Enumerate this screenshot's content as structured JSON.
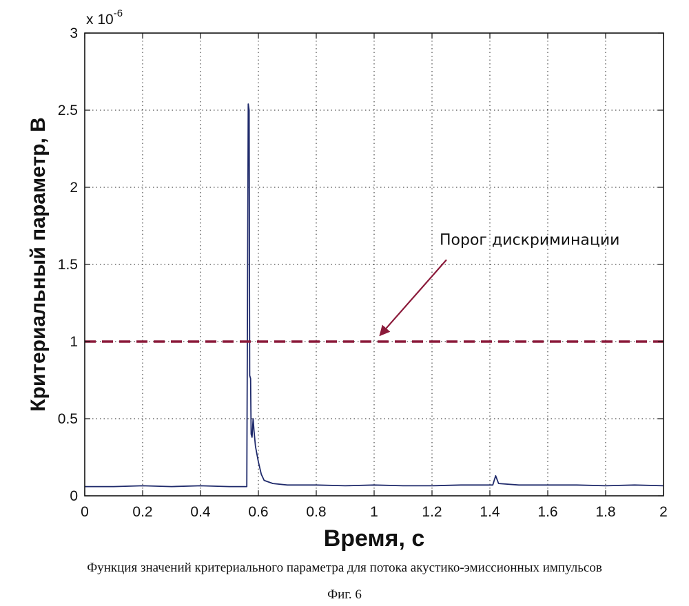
{
  "chart_data": {
    "type": "line",
    "xlabel": "Время, с",
    "ylabel": "Критериальный параметр, В",
    "y_multiplier": "x 10",
    "y_multiplier_exp": "-6",
    "xlim": [
      0,
      2
    ],
    "ylim": [
      0,
      3
    ],
    "x_ticks": [
      "0",
      "0.2",
      "0.4",
      "0.6",
      "0.8",
      "1",
      "1.2",
      "1.4",
      "1.6",
      "1.8",
      "2"
    ],
    "y_ticks": [
      "0",
      "0.5",
      "1",
      "1.5",
      "2",
      "2.5",
      "3"
    ],
    "grid": true,
    "series": [
      {
        "color": "#1f2a6b",
        "points": [
          [
            0.0,
            0.06
          ],
          [
            0.1,
            0.06
          ],
          [
            0.2,
            0.065
          ],
          [
            0.3,
            0.06
          ],
          [
            0.4,
            0.065
          ],
          [
            0.5,
            0.06
          ],
          [
            0.56,
            0.06
          ],
          [
            0.565,
            2.54
          ],
          [
            0.568,
            2.5
          ],
          [
            0.57,
            0.78
          ],
          [
            0.573,
            0.76
          ],
          [
            0.575,
            0.4
          ],
          [
            0.578,
            0.38
          ],
          [
            0.582,
            0.5
          ],
          [
            0.585,
            0.42
          ],
          [
            0.59,
            0.32
          ],
          [
            0.6,
            0.22
          ],
          [
            0.61,
            0.14
          ],
          [
            0.62,
            0.1
          ],
          [
            0.65,
            0.08
          ],
          [
            0.7,
            0.07
          ],
          [
            0.8,
            0.07
          ],
          [
            0.9,
            0.065
          ],
          [
            1.0,
            0.07
          ],
          [
            1.1,
            0.065
          ],
          [
            1.2,
            0.065
          ],
          [
            1.3,
            0.07
          ],
          [
            1.41,
            0.07
          ],
          [
            1.42,
            0.13
          ],
          [
            1.43,
            0.08
          ],
          [
            1.5,
            0.07
          ],
          [
            1.6,
            0.07
          ],
          [
            1.7,
            0.07
          ],
          [
            1.8,
            0.065
          ],
          [
            1.9,
            0.07
          ],
          [
            2.0,
            0.065
          ]
        ]
      },
      {
        "color": "#8b1a3a",
        "style": "dashed",
        "points": [
          [
            0,
            1.0
          ],
          [
            2,
            1.0
          ]
        ]
      }
    ],
    "annotations": [
      {
        "text": "Порог дискриминации",
        "arrow_to": [
          1.02,
          1.04
        ],
        "arrow_from": [
          1.25,
          1.53
        ],
        "color": "#8b1a3a"
      }
    ]
  },
  "caption": "Функция значений критериального параметра для потока акустико-эмиссионных импульсов",
  "figure_label": "Фиг. 6"
}
